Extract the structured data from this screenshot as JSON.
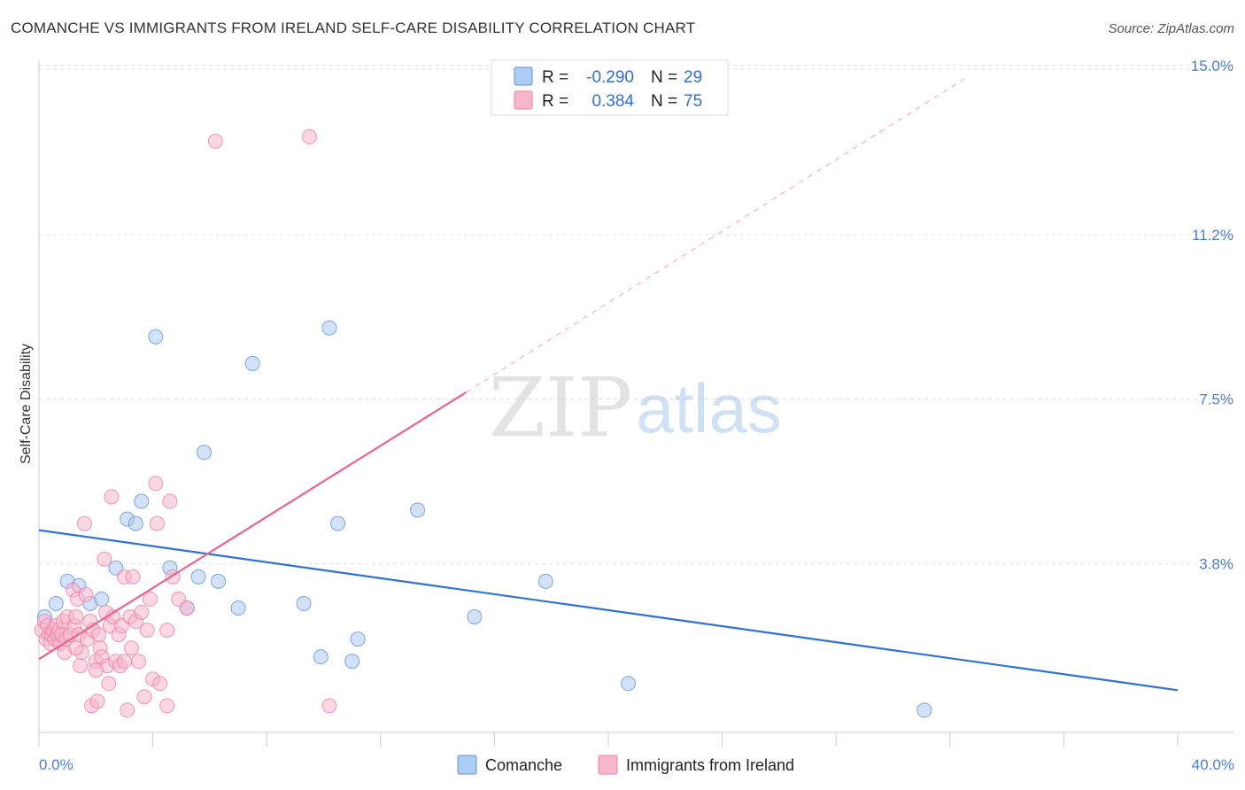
{
  "header": {
    "title": "COMANCHE VS IMMIGRANTS FROM IRELAND SELF-CARE DISABILITY CORRELATION CHART",
    "source": "Source: ZipAtlas.com"
  },
  "watermark": {
    "zip": "ZIP",
    "atlas": "atlas"
  },
  "legend": {
    "rows": [
      {
        "r_label": "R =",
        "r_value": "-0.290",
        "n_label": "N =",
        "n_value": "29",
        "color": "#aecbf2"
      },
      {
        "r_label": "R =",
        "r_value": "0.384",
        "n_label": "N =",
        "n_value": "75",
        "color": "#f7b7cb"
      }
    ]
  },
  "bottom_legend": [
    {
      "label": "Comanche",
      "color": "#aecbf2"
    },
    {
      "label": "Immigrants from Ireland",
      "color": "#f7b7cb"
    }
  ],
  "chart_data": {
    "type": "scatter",
    "title": "COMANCHE VS IMMIGRANTS FROM IRELAND SELF-CARE DISABILITY CORRELATION CHART",
    "xlabel": "",
    "ylabel": "Self-Care Disability",
    "xlim": [
      0,
      40
    ],
    "ylim": [
      0,
      15.5
    ],
    "x_tick_labels": [
      "0.0%",
      "40.0%"
    ],
    "y_ticks": [
      3.8,
      7.5,
      11.2,
      15.0
    ],
    "y_tick_labels": [
      "3.8%",
      "7.5%",
      "11.2%",
      "15.0%"
    ],
    "colors": {
      "comanche": "#5b93e0",
      "ireland": "#ef7fa3",
      "comanche_line": "#2f72d4",
      "ireland_line": "#e8648f"
    },
    "series": [
      {
        "name": "Comanche",
        "points": [
          [
            0.2,
            2.6
          ],
          [
            0.6,
            2.9
          ],
          [
            1.0,
            3.4
          ],
          [
            1.4,
            3.3
          ],
          [
            1.8,
            2.9
          ],
          [
            2.2,
            3.0
          ],
          [
            2.7,
            3.7
          ],
          [
            3.1,
            4.8
          ],
          [
            3.4,
            4.7
          ],
          [
            3.6,
            5.2
          ],
          [
            4.1,
            8.9
          ],
          [
            4.6,
            3.7
          ],
          [
            5.2,
            2.8
          ],
          [
            5.6,
            3.5
          ],
          [
            5.8,
            6.3
          ],
          [
            6.3,
            3.4
          ],
          [
            7.0,
            2.8
          ],
          [
            7.5,
            8.3
          ],
          [
            9.3,
            2.9
          ],
          [
            9.9,
            1.7
          ],
          [
            10.2,
            9.1
          ],
          [
            10.5,
            4.7
          ],
          [
            11.0,
            1.6
          ],
          [
            11.2,
            2.1
          ],
          [
            13.3,
            5.0
          ],
          [
            15.3,
            2.6
          ],
          [
            17.8,
            3.4
          ],
          [
            20.7,
            1.1
          ],
          [
            31.1,
            0.5
          ]
        ]
      },
      {
        "name": "Immigrants from Ireland",
        "points": [
          [
            0.1,
            2.3
          ],
          [
            0.2,
            2.5
          ],
          [
            0.25,
            2.1
          ],
          [
            0.3,
            2.4
          ],
          [
            0.35,
            2.2
          ],
          [
            0.4,
            2.0
          ],
          [
            0.45,
            2.2
          ],
          [
            0.5,
            2.3
          ],
          [
            0.55,
            2.1
          ],
          [
            0.6,
            2.4
          ],
          [
            0.65,
            2.2
          ],
          [
            0.7,
            2.3
          ],
          [
            0.75,
            2.0
          ],
          [
            0.8,
            2.2
          ],
          [
            0.85,
            2.5
          ],
          [
            0.9,
            1.8
          ],
          [
            0.95,
            2.1
          ],
          [
            1.0,
            2.6
          ],
          [
            1.1,
            2.2
          ],
          [
            1.2,
            3.2
          ],
          [
            1.25,
            2.4
          ],
          [
            1.3,
            2.6
          ],
          [
            1.35,
            3.0
          ],
          [
            1.4,
            2.2
          ],
          [
            1.45,
            1.5
          ],
          [
            1.5,
            1.8
          ],
          [
            1.6,
            4.7
          ],
          [
            1.65,
            3.1
          ],
          [
            1.7,
            2.1
          ],
          [
            1.8,
            2.5
          ],
          [
            1.85,
            0.6
          ],
          [
            1.9,
            2.3
          ],
          [
            2.0,
            1.6
          ],
          [
            2.05,
            0.7
          ],
          [
            2.1,
            2.2
          ],
          [
            2.15,
            1.9
          ],
          [
            2.2,
            1.7
          ],
          [
            2.3,
            3.9
          ],
          [
            2.35,
            2.7
          ],
          [
            2.4,
            1.5
          ],
          [
            2.45,
            1.1
          ],
          [
            2.5,
            2.4
          ],
          [
            2.55,
            5.3
          ],
          [
            2.6,
            2.6
          ],
          [
            2.7,
            1.6
          ],
          [
            2.8,
            2.2
          ],
          [
            2.85,
            1.5
          ],
          [
            2.9,
            2.4
          ],
          [
            3.0,
            3.5
          ],
          [
            3.1,
            0.5
          ],
          [
            3.2,
            2.6
          ],
          [
            3.25,
            1.9
          ],
          [
            3.3,
            3.5
          ],
          [
            3.4,
            2.5
          ],
          [
            3.5,
            1.6
          ],
          [
            3.6,
            2.7
          ],
          [
            3.7,
            0.8
          ],
          [
            3.8,
            2.3
          ],
          [
            3.9,
            3.0
          ],
          [
            4.0,
            1.2
          ],
          [
            4.1,
            5.6
          ],
          [
            4.15,
            4.7
          ],
          [
            4.25,
            1.1
          ],
          [
            4.5,
            0.6
          ],
          [
            4.6,
            5.2
          ],
          [
            4.7,
            3.5
          ],
          [
            4.9,
            3.0
          ],
          [
            5.2,
            2.8
          ],
          [
            6.2,
            13.3
          ],
          [
            9.5,
            13.4
          ],
          [
            10.2,
            0.6
          ],
          [
            4.5,
            2.3
          ],
          [
            3.0,
            1.6
          ],
          [
            2.0,
            1.4
          ],
          [
            1.3,
            1.9
          ]
        ]
      }
    ],
    "trend_lines": [
      {
        "name": "Comanche",
        "x": [
          0,
          40
        ],
        "y": [
          4.55,
          0.95
        ],
        "style": "solid"
      },
      {
        "name": "Immigrants from Ireland",
        "x": [
          0,
          15.0
        ],
        "y": [
          1.65,
          7.65
        ],
        "style": "solid"
      },
      {
        "name": "Immigrants from Ireland extension",
        "x": [
          15.0,
          32.5
        ],
        "y": [
          7.65,
          14.7
        ],
        "style": "dashed"
      }
    ]
  }
}
